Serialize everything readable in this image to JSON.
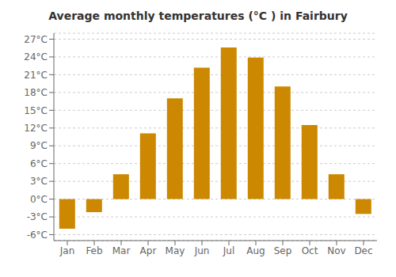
{
  "chart_data": {
    "type": "bar",
    "title": "Average monthly temperatures (°C ) in Fairbury",
    "categories": [
      "Jan",
      "Feb",
      "Mar",
      "Apr",
      "May",
      "Jun",
      "Jul",
      "Aug",
      "Sep",
      "Oct",
      "Nov",
      "Dec"
    ],
    "values": [
      -5.0,
      -2.2,
      4.2,
      11.1,
      17.0,
      22.2,
      25.6,
      23.9,
      19.0,
      12.5,
      4.2,
      -2.5
    ],
    "color": "#CC8800",
    "ylim": [
      -7,
      28
    ],
    "yticks": [
      {
        "value": -6,
        "label": "-6°C"
      },
      {
        "value": -3,
        "label": "-3°C"
      },
      {
        "value": 0,
        "label": "0°C"
      },
      {
        "value": 3,
        "label": "3°C"
      },
      {
        "value": 6,
        "label": "6°C"
      },
      {
        "value": 9,
        "label": "9°C"
      },
      {
        "value": 12,
        "label": "12°C"
      },
      {
        "value": 15,
        "label": "15°C"
      },
      {
        "value": 18,
        "label": "18°C"
      },
      {
        "value": 21,
        "label": "21°C"
      },
      {
        "value": 24,
        "label": "24°C"
      },
      {
        "value": 27,
        "label": "27°C"
      }
    ],
    "grid": true
  }
}
